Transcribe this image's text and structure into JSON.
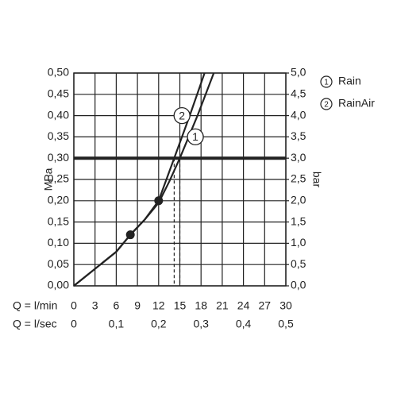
{
  "chart_data": {
    "type": "line",
    "x_label": "Q = l/min",
    "x2_label": "Q = l/sec",
    "y_label": "MPa",
    "y2_label": "bar",
    "xlim": [
      0,
      30
    ],
    "xticks": [
      0,
      3,
      6,
      9,
      12,
      15,
      18,
      21,
      24,
      27,
      30
    ],
    "x2lim": [
      0,
      0.5
    ],
    "x2ticks": [
      0,
      {
        "value": 0.1,
        "label": "0,1"
      },
      {
        "value": 0.2,
        "label": "0,2"
      },
      {
        "value": 0.3,
        "label": "0,3"
      },
      {
        "value": 0.4,
        "label": "0,4"
      },
      {
        "value": 0.5,
        "label": "0,5"
      }
    ],
    "ylim": [
      0,
      0.5
    ],
    "yticks": [
      {
        "value": 0,
        "label": "0,00"
      },
      {
        "value": 0.05,
        "label": "0,05"
      },
      {
        "value": 0.1,
        "label": "0,10"
      },
      {
        "value": 0.15,
        "label": "0,15"
      },
      {
        "value": 0.2,
        "label": "0,20"
      },
      {
        "value": 0.25,
        "label": "0,25"
      },
      {
        "value": 0.3,
        "label": "0,30"
      },
      {
        "value": 0.35,
        "label": "0,35"
      },
      {
        "value": 0.4,
        "label": "0,40"
      },
      {
        "value": 0.45,
        "label": "0,45"
      },
      {
        "value": 0.5,
        "label": "0,50"
      }
    ],
    "y2lim": [
      0,
      5
    ],
    "y2ticks": [
      {
        "value": 0,
        "label": "0,0"
      },
      {
        "value": 0.5,
        "label": "0,5"
      },
      {
        "value": 1,
        "label": "1,0"
      },
      {
        "value": 1.5,
        "label": "1,5"
      },
      {
        "value": 2,
        "label": "2,0"
      },
      {
        "value": 2.5,
        "label": "2,5"
      },
      {
        "value": 3,
        "label": "3,0"
      },
      {
        "value": 3.5,
        "label": "3,5"
      },
      {
        "value": 4,
        "label": "4,0"
      },
      {
        "value": 4.5,
        "label": "4,5"
      },
      {
        "value": 5,
        "label": "5,0"
      }
    ],
    "grid": true,
    "color": "#222222",
    "reference_y": 0.3,
    "dashed_x": [
      14.2,
      15
    ],
    "series": [
      {
        "name": "Rain",
        "label": "1",
        "label_x": 17.2,
        "label_y": 0.35,
        "x": [
          0,
          3,
          6,
          8,
          10,
          12,
          13.5,
          15,
          17.5,
          19.8
        ],
        "values": [
          0,
          0.04,
          0.08,
          0.12,
          0.155,
          0.195,
          0.245,
          0.3,
          0.4,
          0.5
        ]
      },
      {
        "name": "RainAir",
        "label": "2",
        "label_x": 15.3,
        "label_y": 0.4,
        "x": [
          0,
          3,
          6,
          8,
          10,
          12,
          13.1,
          14.2,
          16.4,
          18.5
        ],
        "values": [
          0,
          0.04,
          0.08,
          0.12,
          0.155,
          0.2,
          0.25,
          0.3,
          0.4,
          0.5
        ]
      }
    ],
    "points": {
      "x": [
        8,
        12
      ],
      "values": [
        0.12,
        0.2
      ]
    }
  }
}
